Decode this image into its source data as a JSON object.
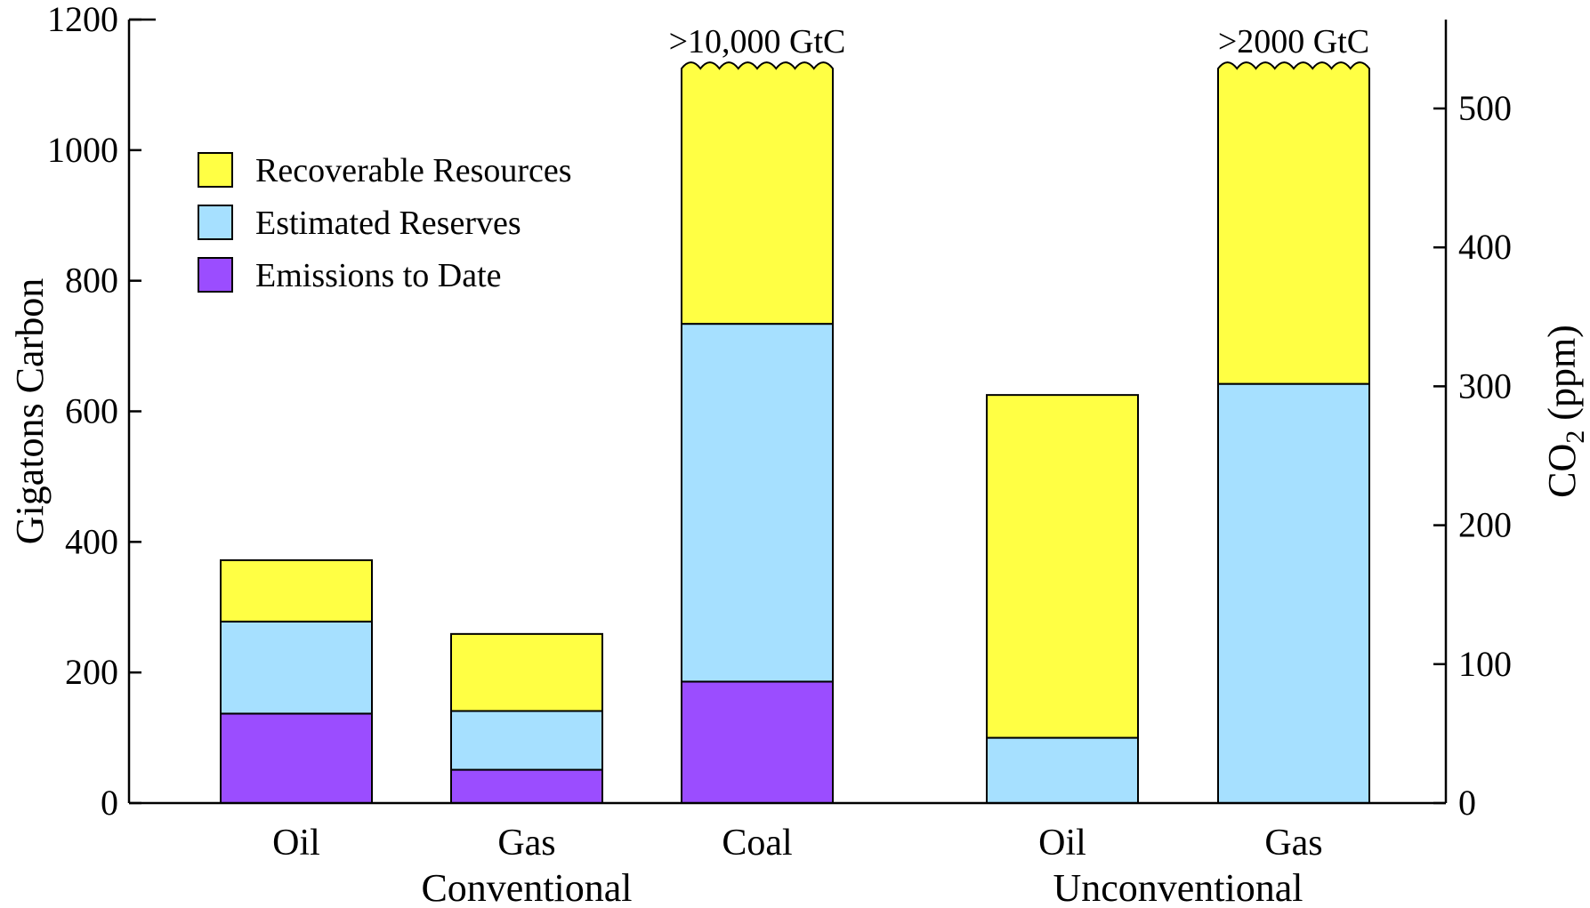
{
  "chart_data": {
    "type": "bar",
    "stacked": true,
    "categories": [
      "Oil",
      "Gas",
      "Coal",
      "Oil",
      "Gas"
    ],
    "groups": [
      {
        "label": "Conventional",
        "categories": [
          0,
          1,
          2
        ]
      },
      {
        "label": "Unconventional",
        "categories": [
          3,
          4
        ]
      }
    ],
    "series": [
      {
        "name": "Emissions to Date",
        "color": "#9b4dff",
        "values": [
          137,
          51,
          186,
          0,
          0
        ]
      },
      {
        "name": "Estimated Reserves",
        "color": "#a6e0ff",
        "values": [
          141,
          90,
          548,
          100,
          642
        ]
      },
      {
        "name": "Recoverable Resources",
        "color": "#ffff44",
        "values": [
          94,
          118,
          0,
          525,
          0
        ]
      }
    ],
    "truncated_bars": [
      {
        "category_index": 2,
        "base_value": 734,
        "shown_top": 1125,
        "label": ">10,000 GtC"
      },
      {
        "category_index": 4,
        "base_value": 642,
        "shown_top": 1125,
        "label": ">2000 GtC"
      }
    ],
    "ylabel": "Gigatons Carbon",
    "ylim": [
      0,
      1200
    ],
    "yticks": [
      0,
      200,
      400,
      600,
      800,
      1000,
      1200
    ],
    "y2label_main": "CO",
    "y2label_sub": "2",
    "y2label_unit": " (ppm)",
    "y2ticks": [
      0,
      100,
      200,
      300,
      400,
      500
    ],
    "y2_per_gtc": 0.47,
    "legend": {
      "placement": "top-left",
      "order": [
        "Recoverable Resources",
        "Estimated Reserves",
        "Emissions to Date"
      ]
    },
    "grid": false
  }
}
